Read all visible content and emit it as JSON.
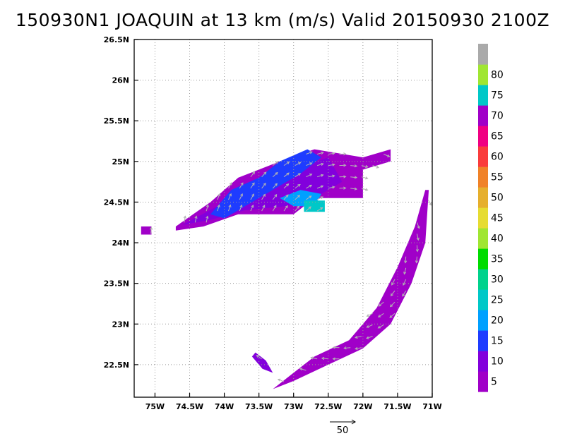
{
  "title": "150930N1 JOAQUIN at 13 km (m/s) Valid 20150930 2100Z",
  "chart_data": {
    "type": "heatmap",
    "variable": "wind speed at 13 km",
    "units": "m/s",
    "xlim": [
      -75.3,
      -71.0
    ],
    "ylim": [
      22.1,
      26.5
    ],
    "x_ticks": [
      {
        "value": -75.0,
        "label": "75W"
      },
      {
        "value": -74.5,
        "label": "74.5W"
      },
      {
        "value": -74.0,
        "label": "74W"
      },
      {
        "value": -73.5,
        "label": "73.5W"
      },
      {
        "value": -73.0,
        "label": "73W"
      },
      {
        "value": -72.5,
        "label": "72.5W"
      },
      {
        "value": -72.0,
        "label": "72W"
      },
      {
        "value": -71.5,
        "label": "71.5W"
      },
      {
        "value": -71.0,
        "label": "71W"
      }
    ],
    "y_ticks": [
      {
        "value": 22.5,
        "label": "22.5N"
      },
      {
        "value": 23.0,
        "label": "23N"
      },
      {
        "value": 23.5,
        "label": "23.5N"
      },
      {
        "value": 24.0,
        "label": "24N"
      },
      {
        "value": 24.5,
        "label": "24.5N"
      },
      {
        "value": 25.0,
        "label": "25N"
      },
      {
        "value": 25.5,
        "label": "25.5N"
      },
      {
        "value": 26.0,
        "label": "26N"
      },
      {
        "value": 26.5,
        "label": "26.5N"
      }
    ],
    "grid": true,
    "colorbar": {
      "placement": "right",
      "bins": [
        {
          "label": "5",
          "color": "#a000c8"
        },
        {
          "label": "10",
          "color": "#8200dc"
        },
        {
          "label": "15",
          "color": "#1e3cff"
        },
        {
          "label": "20",
          "color": "#00a0ff"
        },
        {
          "label": "25",
          "color": "#00c8c8"
        },
        {
          "label": "30",
          "color": "#00d28c"
        },
        {
          "label": "35",
          "color": "#00dc00"
        },
        {
          "label": "40",
          "color": "#a0e632"
        },
        {
          "label": "45",
          "color": "#e6dc32"
        },
        {
          "label": "50",
          "color": "#e6af2d"
        },
        {
          "label": "55",
          "color": "#f08228"
        },
        {
          "label": "60",
          "color": "#fa3c3c"
        },
        {
          "label": "65",
          "color": "#f00082"
        },
        {
          "label": "70",
          "color": "#a000c8"
        },
        {
          "label": "75",
          "color": "#00c8c8"
        },
        {
          "label": "80",
          "color": "#a0e632"
        },
        {
          "label": "",
          "color": "#aaaaaa"
        }
      ]
    },
    "regions": [
      {
        "name": "northern band",
        "speed_class": "5",
        "polygon": [
          [
            -74.7,
            24.2
          ],
          [
            -74.2,
            24.5
          ],
          [
            -73.8,
            24.8
          ],
          [
            -73.2,
            25.0
          ],
          [
            -72.7,
            25.15
          ],
          [
            -72.0,
            25.05
          ],
          [
            -71.6,
            25.15
          ],
          [
            -71.6,
            25.0
          ],
          [
            -72.0,
            24.9
          ],
          [
            -72.0,
            24.55
          ],
          [
            -72.7,
            24.55
          ],
          [
            -73.0,
            24.35
          ],
          [
            -73.8,
            24.35
          ],
          [
            -74.3,
            24.2
          ],
          [
            -74.7,
            24.15
          ]
        ]
      },
      {
        "name": "northern band inner",
        "speed_class": "10",
        "polygon": [
          [
            -74.6,
            24.22
          ],
          [
            -74.1,
            24.45
          ],
          [
            -73.7,
            24.7
          ],
          [
            -73.0,
            24.9
          ],
          [
            -72.5,
            25.05
          ],
          [
            -72.3,
            24.75
          ],
          [
            -72.6,
            24.6
          ],
          [
            -73.1,
            24.45
          ],
          [
            -73.7,
            24.4
          ],
          [
            -74.2,
            24.28
          ]
        ]
      },
      {
        "name": "northern band core",
        "speed_class": "15",
        "polygon": [
          [
            -74.2,
            24.35
          ],
          [
            -73.9,
            24.65
          ],
          [
            -73.5,
            24.8
          ],
          [
            -73.2,
            25.0
          ],
          [
            -72.8,
            25.15
          ],
          [
            -72.6,
            25.05
          ],
          [
            -72.9,
            24.85
          ],
          [
            -73.2,
            24.7
          ],
          [
            -73.6,
            24.5
          ],
          [
            -74.0,
            24.3
          ]
        ]
      },
      {
        "name": "northern band max",
        "speed_class": "20",
        "polygon": [
          [
            -73.2,
            24.55
          ],
          [
            -72.9,
            24.65
          ],
          [
            -72.6,
            24.6
          ],
          [
            -72.7,
            24.45
          ],
          [
            -73.0,
            24.45
          ]
        ]
      },
      {
        "name": "northern band peak",
        "speed_class": "25",
        "polygon": [
          [
            -72.85,
            24.52
          ],
          [
            -72.55,
            24.52
          ],
          [
            -72.55,
            24.38
          ],
          [
            -72.85,
            24.38
          ]
        ]
      },
      {
        "name": "eastern eyewall arc",
        "speed_class": "5",
        "polygon": [
          [
            -71.05,
            24.65
          ],
          [
            -71.1,
            24.0
          ],
          [
            -71.3,
            23.5
          ],
          [
            -71.6,
            23.0
          ],
          [
            -72.0,
            22.7
          ],
          [
            -72.5,
            22.5
          ],
          [
            -73.0,
            22.3
          ],
          [
            -73.3,
            22.2
          ],
          [
            -73.0,
            22.4
          ],
          [
            -72.7,
            22.6
          ],
          [
            -72.2,
            22.8
          ],
          [
            -71.8,
            23.2
          ],
          [
            -71.5,
            23.7
          ],
          [
            -71.25,
            24.2
          ],
          [
            -71.1,
            24.65
          ]
        ]
      },
      {
        "name": "southwest fragment",
        "speed_class": "10",
        "polygon": [
          [
            -73.55,
            22.65
          ],
          [
            -73.4,
            22.55
          ],
          [
            -73.3,
            22.4
          ],
          [
            -73.45,
            22.45
          ],
          [
            -73.6,
            22.6
          ]
        ]
      },
      {
        "name": "western isolated cell",
        "speed_class": "5",
        "polygon": [
          [
            -75.2,
            24.2
          ],
          [
            -75.05,
            24.2
          ],
          [
            -75.05,
            24.1
          ],
          [
            -75.2,
            24.1
          ]
        ]
      }
    ],
    "reference_vector": {
      "label": "50",
      "speed": 50
    }
  }
}
